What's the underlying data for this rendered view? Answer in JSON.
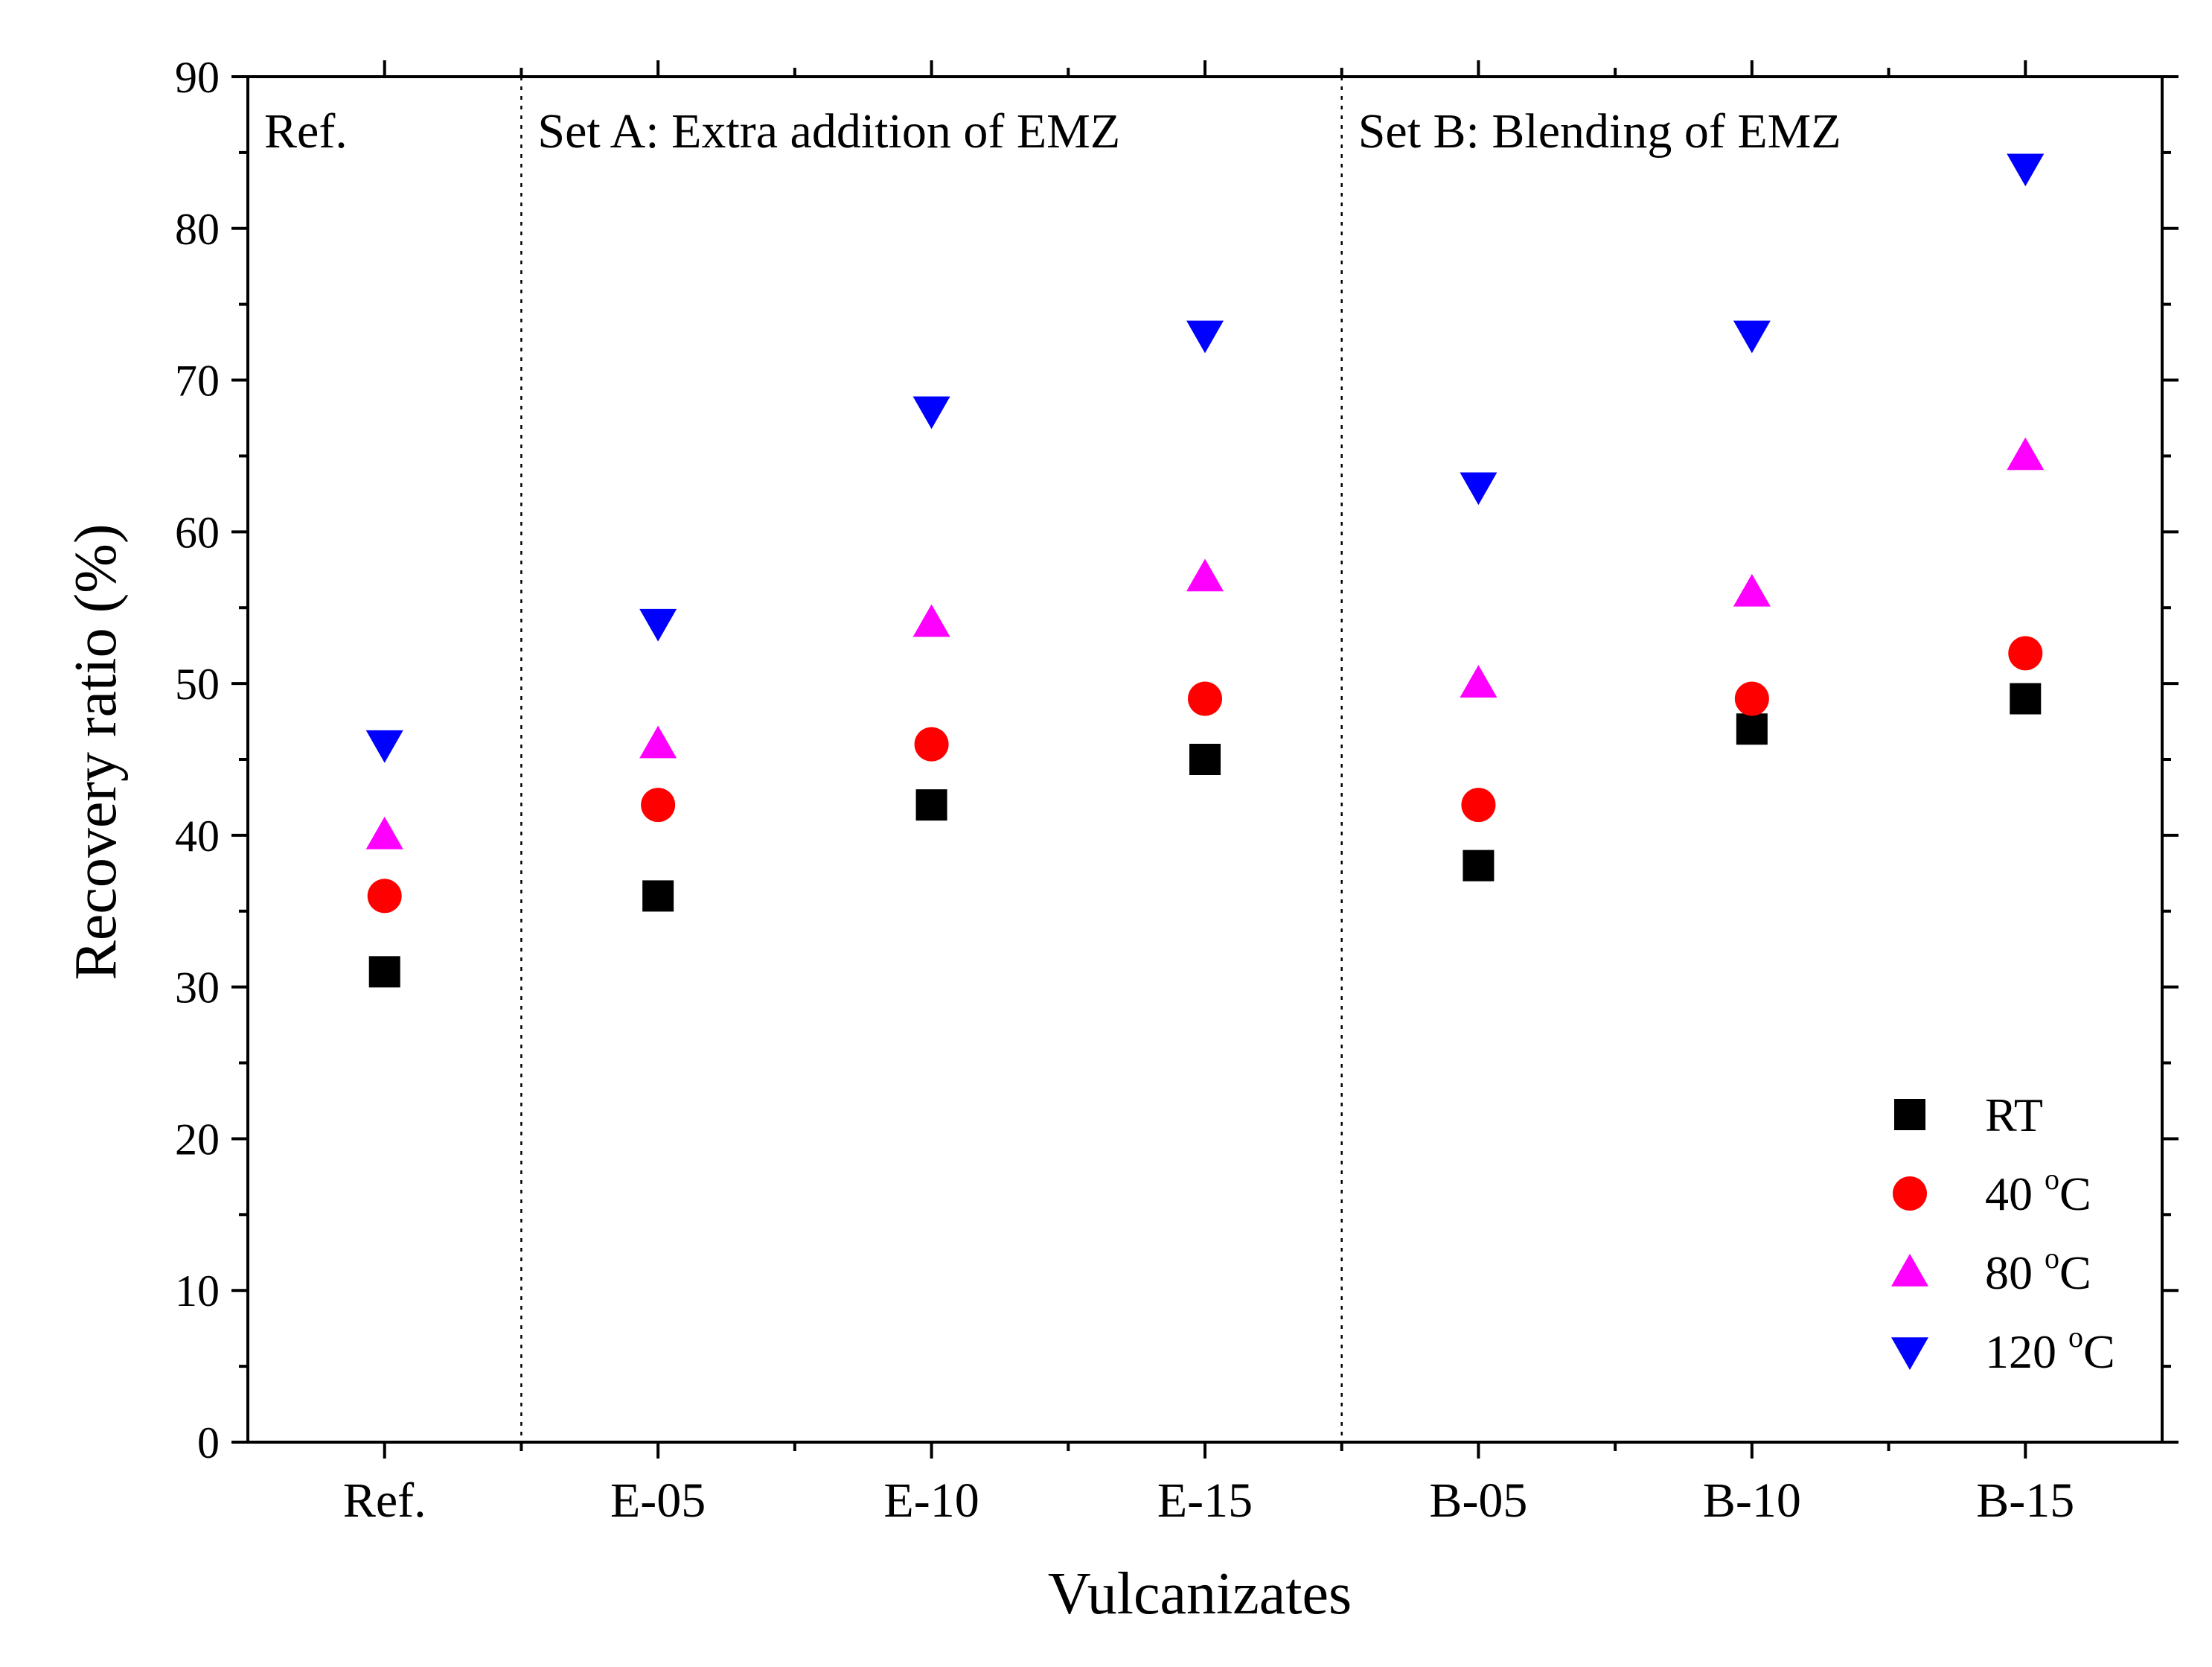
{
  "chart_data": {
    "type": "scatter",
    "title": "",
    "xlabel": "Vulcanizates",
    "ylabel": "Recovery ratio (%)",
    "ylim": [
      0,
      90
    ],
    "yticks": [
      0,
      10,
      20,
      30,
      40,
      50,
      60,
      70,
      80,
      90
    ],
    "categories": [
      "Ref.",
      "E-05",
      "E-10",
      "E-15",
      "B-05",
      "B-10",
      "B-15"
    ],
    "grid": false,
    "legend_position": "bottom-right",
    "groups": [
      {
        "label": "Ref."
      },
      {
        "label": "Set A: Extra addition of EMZ"
      },
      {
        "label": "Set B: Blending of EMZ"
      }
    ],
    "series": [
      {
        "name": "RT",
        "marker": "square",
        "color": "#000000",
        "values": [
          31,
          36,
          42,
          45,
          38,
          47,
          49
        ]
      },
      {
        "name": "40 °C",
        "name_base": "40 ",
        "name_sup": "o",
        "name_unit": "C",
        "marker": "circle",
        "color": "#ff0000",
        "values": [
          36,
          42,
          46,
          49,
          42,
          49,
          52
        ]
      },
      {
        "name": "80 °C",
        "name_base": "80 ",
        "name_sup": "o",
        "name_unit": "C",
        "marker": "triangle-up",
        "color": "#ff00ff",
        "values": [
          40,
          46,
          54,
          57,
          50,
          56,
          65
        ]
      },
      {
        "name": "120 °C",
        "name_base": "120 ",
        "name_sup": "o",
        "name_unit": "C",
        "marker": "triangle-down",
        "color": "#0000ff",
        "values": [
          46,
          54,
          68,
          73,
          63,
          73,
          84
        ]
      }
    ]
  }
}
